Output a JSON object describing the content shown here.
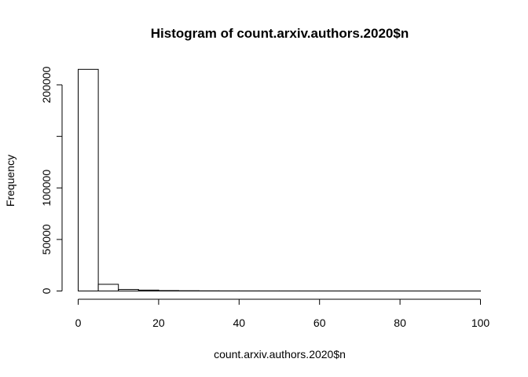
{
  "chart_data": {
    "type": "bar",
    "title": "Histogram of count.arxiv.authors.2020$n",
    "xlabel": "count.arxiv.authors.2020$n",
    "ylabel": "Frequency",
    "xlim": [
      0,
      100
    ],
    "ylim": [
      0,
      215000
    ],
    "bin_width": 5,
    "x_ticks": [
      0,
      20,
      40,
      60,
      80,
      100
    ],
    "y_ticks": [
      0,
      50000,
      100000,
      150000,
      200000
    ],
    "y_tick_labels": [
      "0",
      "50000",
      "100000",
      "",
      "200000"
    ],
    "bins": [
      {
        "start": 0,
        "end": 5,
        "count": 215000
      },
      {
        "start": 5,
        "end": 10,
        "count": 6500
      },
      {
        "start": 10,
        "end": 15,
        "count": 1500
      },
      {
        "start": 15,
        "end": 20,
        "count": 900
      },
      {
        "start": 20,
        "end": 25,
        "count": 400
      },
      {
        "start": 25,
        "end": 30,
        "count": 250
      },
      {
        "start": 30,
        "end": 35,
        "count": 150
      },
      {
        "start": 35,
        "end": 40,
        "count": 100
      },
      {
        "start": 40,
        "end": 45,
        "count": 80
      },
      {
        "start": 45,
        "end": 50,
        "count": 60
      },
      {
        "start": 50,
        "end": 55,
        "count": 50
      },
      {
        "start": 55,
        "end": 60,
        "count": 40
      },
      {
        "start": 60,
        "end": 65,
        "count": 30
      },
      {
        "start": 65,
        "end": 70,
        "count": 25
      },
      {
        "start": 70,
        "end": 75,
        "count": 20
      },
      {
        "start": 75,
        "end": 80,
        "count": 15
      },
      {
        "start": 80,
        "end": 85,
        "count": 12
      },
      {
        "start": 85,
        "end": 90,
        "count": 10
      },
      {
        "start": 90,
        "end": 95,
        "count": 8
      },
      {
        "start": 95,
        "end": 100,
        "count": 6
      }
    ]
  }
}
